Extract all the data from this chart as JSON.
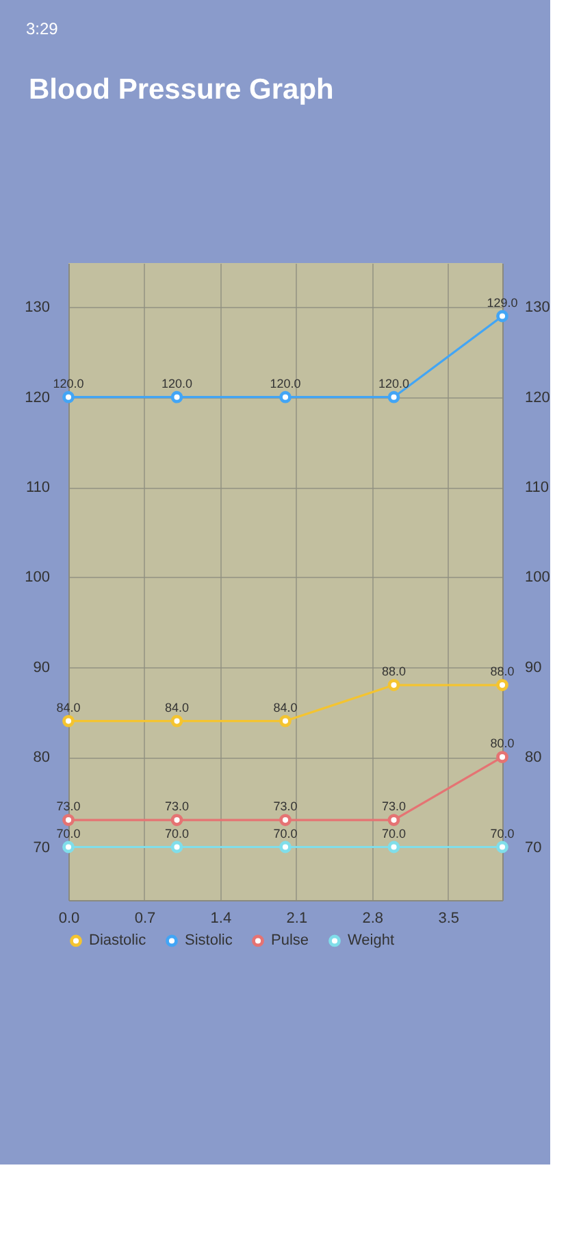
{
  "chart_data": {
    "type": "line",
    "title": "Blood Pressure Graph",
    "annotations": [
      "3:29"
    ],
    "x": [
      0,
      1,
      2,
      3,
      4
    ],
    "series": [
      {
        "name": "Diastolic",
        "color": "#f4c430",
        "values": [
          84,
          84,
          84,
          88,
          88
        ],
        "value_labels": [
          "84.0",
          "84.0",
          "84.0",
          "88.0",
          "88.0"
        ]
      },
      {
        "name": "Sistolic",
        "color": "#42a5f5",
        "values": [
          120,
          120,
          120,
          120,
          129
        ],
        "value_labels": [
          "120.0",
          "120.0",
          "120.0",
          "120.0",
          "129.0"
        ]
      },
      {
        "name": "Pulse",
        "color": "#e57373",
        "values": [
          73,
          73,
          73,
          73,
          80
        ],
        "value_labels": [
          "73.0",
          "73.0",
          "73.0",
          "73.0",
          "80.0"
        ]
      },
      {
        "name": "Weight",
        "color": "#80deea",
        "values": [
          70,
          70,
          70,
          70,
          70
        ],
        "value_labels": [
          "70.0",
          "70.0",
          "70.0",
          "70.0",
          "70.0"
        ]
      }
    ],
    "xlim": [
      0,
      4
    ],
    "xticks": [
      {
        "value": 0,
        "label": "0.0"
      },
      0.7,
      1.4,
      2.1,
      2.8,
      3.5
    ],
    "ylim": [
      64.1,
      134.9
    ],
    "yticks": [
      70,
      80,
      90,
      100,
      110,
      120,
      130
    ],
    "y2lim": [
      64.1,
      134.9
    ],
    "y2ticks": [
      70,
      80,
      90,
      100,
      110,
      120,
      130
    ],
    "grid": true,
    "legend": "bottom",
    "marker": "circle"
  }
}
